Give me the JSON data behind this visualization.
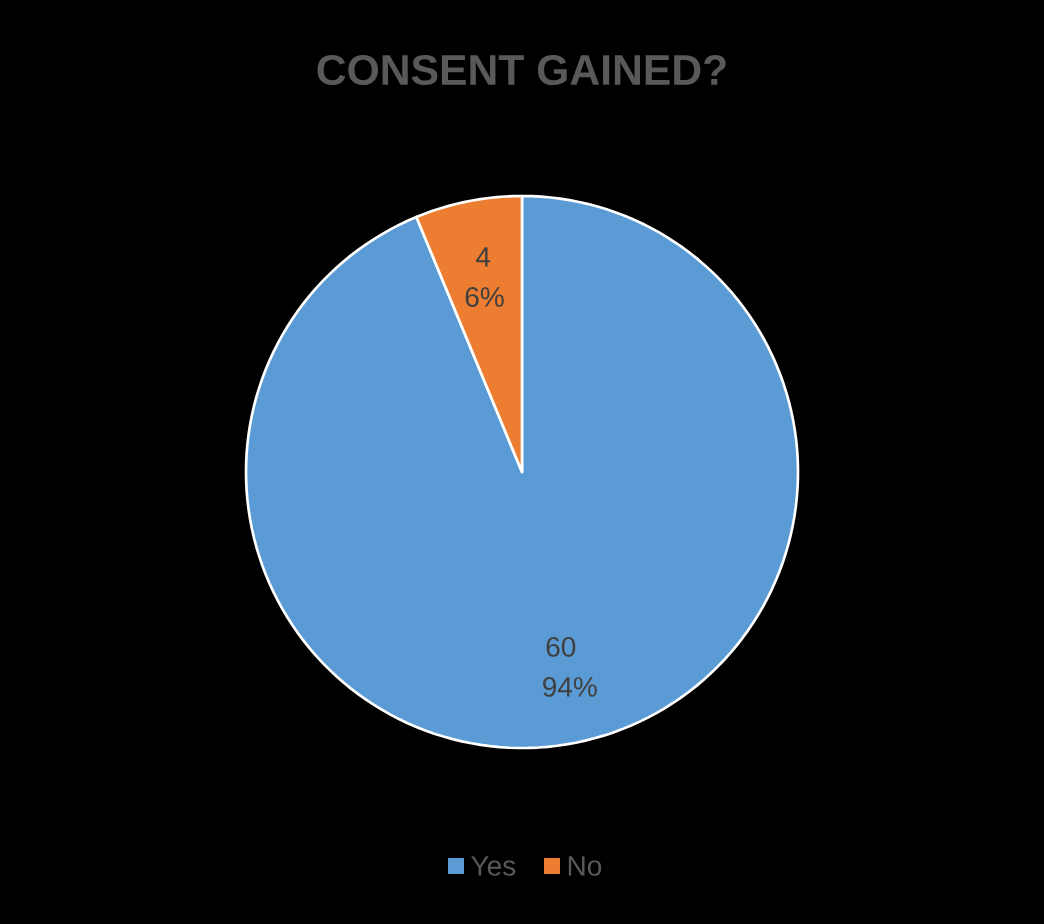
{
  "chart_data": {
    "type": "pie",
    "title": "CONSENT GAINED?",
    "categories": [
      "Yes",
      "No"
    ],
    "values": [
      60,
      4
    ],
    "colors": [
      "#5b9bd5",
      "#ed7d31"
    ],
    "value_labels": [
      "60 94%",
      "4 6%"
    ],
    "legend": "bottom"
  }
}
